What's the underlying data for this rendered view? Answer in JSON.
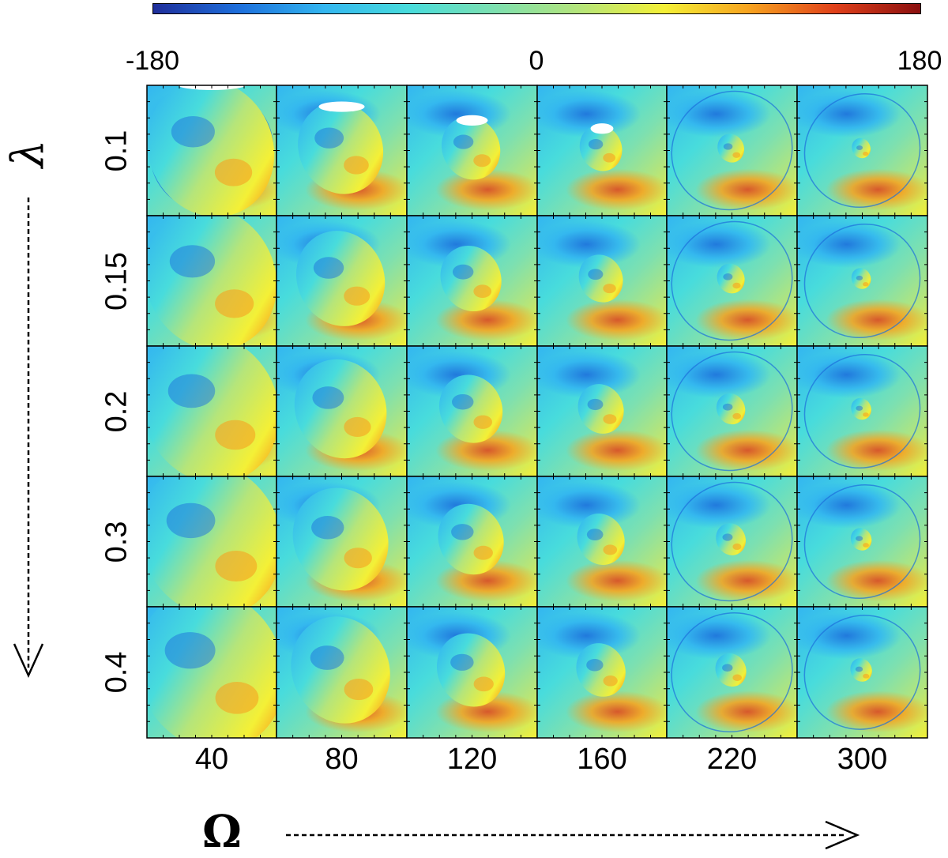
{
  "chart_data": {
    "type": "heatmap",
    "title": "",
    "colorbar": {
      "min": -180,
      "max": 180,
      "ticks": [
        "-180",
        "0",
        "180"
      ],
      "colormap": "jet"
    },
    "xlabel": "Ω",
    "ylabel": "λ",
    "columns": [
      "40",
      "80",
      "120",
      "160",
      "220",
      "300"
    ],
    "rows": [
      "0.1",
      "0.15",
      "0.2",
      "0.3",
      "0.4"
    ]
  },
  "colors": {
    "deep_blue": "#1f2e9a",
    "blue": "#1d6fdc",
    "sky": "#33b6f0",
    "cyan": "#48dcdc",
    "aqua_green": "#7de0b0",
    "green": "#b5e57a",
    "yellow": "#f4f036",
    "orange": "#f7a21f",
    "red": "#e0401a",
    "dark_red": "#8a0f0f"
  }
}
